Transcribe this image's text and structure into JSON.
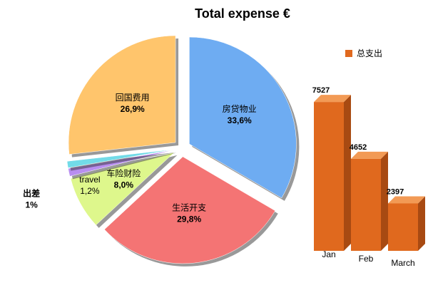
{
  "chart_data": [
    {
      "type": "pie",
      "title": "Total expense €",
      "categories": [
        "房贷物业",
        "生活开支",
        "车险财险",
        "travel",
        "出差",
        "回国费用"
      ],
      "values": [
        33.6,
        29.8,
        8.0,
        1.2,
        1,
        26.9
      ],
      "value_labels": [
        "33,6%",
        "29,8%",
        "8,0%",
        "1,2%",
        "1%",
        "26,9%"
      ],
      "colors": [
        "#6eacf2",
        "#f47474",
        "#def78c",
        "#b88ef0",
        "#72dbe8",
        "#ffc56c"
      ]
    },
    {
      "type": "bar",
      "categories": [
        "Jan",
        "Feb",
        "March"
      ],
      "series": [
        {
          "name": "总支出",
          "color": "#e0691e",
          "values": [
            7527,
            4652,
            2397
          ]
        }
      ],
      "ylim": [
        0,
        8000
      ]
    }
  ]
}
